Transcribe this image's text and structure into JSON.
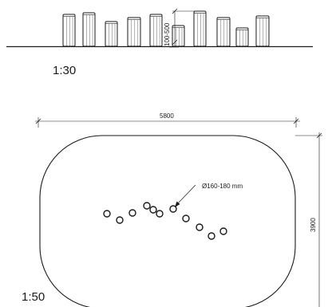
{
  "elevation": {
    "scale_label": "1:30",
    "height_dimension_label": "100-500",
    "post_count": 10
  },
  "plan": {
    "scale_label": "1:50",
    "width_dimension_label": "5800",
    "height_dimension_label": "3900",
    "post_diameter_label": "Ø160-180 mm",
    "post_count": 11
  },
  "colors": {
    "line": "#1a1a1a",
    "post_fill": "#ffffff"
  }
}
